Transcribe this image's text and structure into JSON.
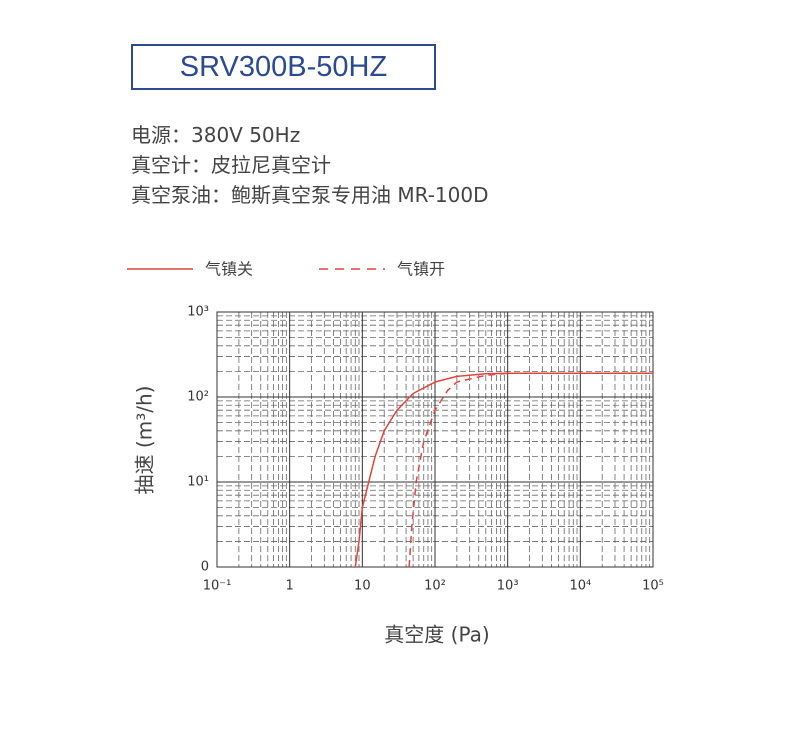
{
  "header": {
    "title": "SRV300B-50HZ",
    "specs": [
      "电源：380V 50Hz",
      "真空计：皮拉尼真空计",
      "真空泵油：鲍斯真空泵专用油 MR-100D"
    ]
  },
  "chart_data": {
    "type": "line",
    "x_label": "真空度 (Pa)",
    "y_label": "抽速 (m³/h)",
    "xscale": "log",
    "yscale": "log",
    "grid": true,
    "xlim": [
      0.1,
      100000
    ],
    "xticks": [
      {
        "value": 0.1,
        "label": "10⁻¹"
      },
      1,
      10,
      {
        "value": 100,
        "label": "10²"
      },
      {
        "value": 1000,
        "label": "10³"
      },
      {
        "value": 10000,
        "label": "10⁴"
      },
      {
        "value": 100000,
        "label": "10⁵"
      }
    ],
    "ylim": [
      1,
      1000
    ],
    "yticks": [
      {
        "value": 1,
        "label": "0"
      },
      {
        "value": 10,
        "label": "10¹"
      },
      {
        "value": 100,
        "label": "10²"
      },
      {
        "value": 1000,
        "label": "10³"
      }
    ],
    "series": [
      {
        "name": "气镇关",
        "color": "#e0453f",
        "style": "solid",
        "x": [
          8,
          9,
          10,
          15,
          20,
          30,
          50,
          100,
          200,
          500,
          1000,
          100000
        ],
        "values": [
          1,
          2,
          5,
          20,
          40,
          70,
          110,
          150,
          175,
          188,
          190,
          190
        ]
      },
      {
        "name": "气镇开",
        "color": "#e0453f",
        "style": "dashed",
        "x": [
          44,
          48,
          55,
          70,
          100,
          150,
          200,
          500,
          1000,
          100000
        ],
        "values": [
          1,
          3,
          10,
          30,
          70,
          120,
          150,
          180,
          190,
          190
        ]
      }
    ]
  }
}
